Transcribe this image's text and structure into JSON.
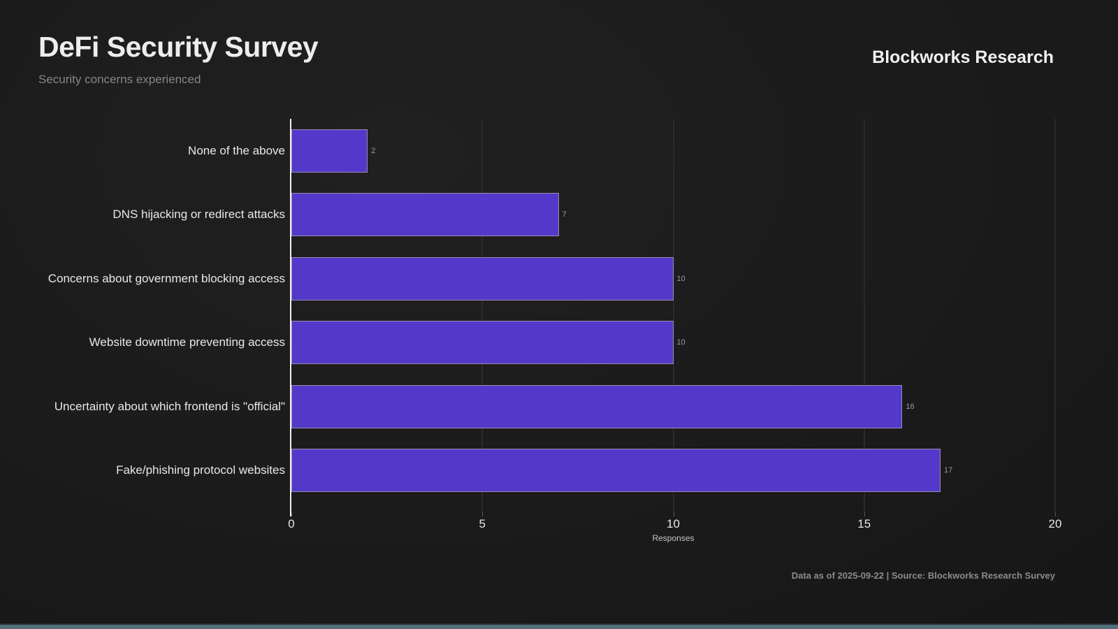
{
  "header": {
    "title": "DeFi Security Survey",
    "subtitle": "Security concerns experienced",
    "brand": "Blockworks Research"
  },
  "footer": {
    "source_note": "Data as of 2025-09-22 | Source: Blockworks Research Survey"
  },
  "chart_data": {
    "type": "bar",
    "orientation": "horizontal",
    "title": "DeFi Security Survey",
    "subtitle": "Security concerns experienced",
    "categories": [
      "None of the above",
      "DNS hijacking or redirect attacks",
      "Concerns about government blocking access",
      "Website downtime preventing access",
      "Uncertainty about which frontend is \"official\"",
      "Fake/phishing protocol websites"
    ],
    "values": [
      2,
      7,
      10,
      10,
      16,
      17
    ],
    "data_labels": [
      "2",
      "7",
      "10",
      "10",
      "16",
      "17"
    ],
    "xlabel": "Responses",
    "x_ticks": [
      "0",
      "5",
      "10",
      "15",
      "20"
    ],
    "x_tick_values": [
      0,
      5,
      10,
      15,
      20
    ],
    "xlim": [
      0,
      20
    ],
    "grid": true,
    "legend": "none",
    "bar_color": "#5438c9",
    "background_color": "#1b1b1b"
  }
}
